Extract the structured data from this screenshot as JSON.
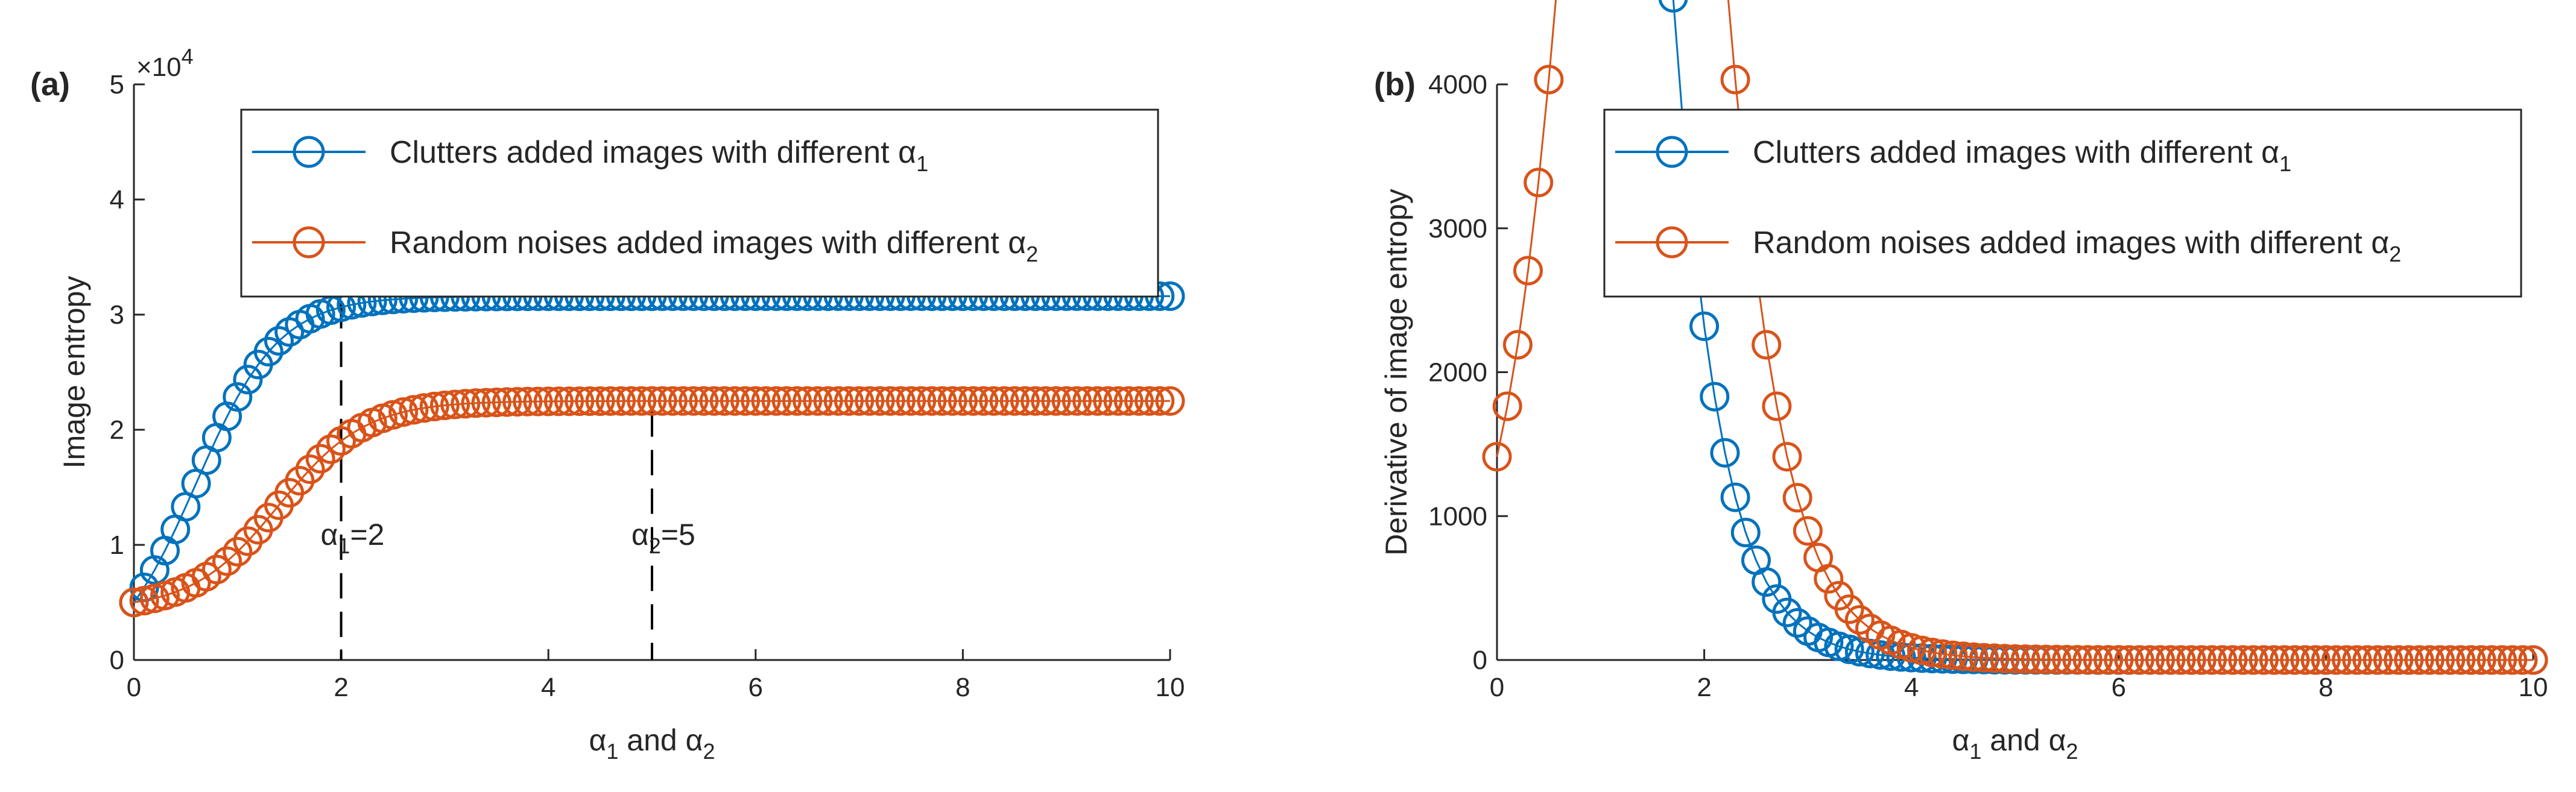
{
  "colors": {
    "series1": "#0072BD",
    "series2": "#D95319",
    "axis": "#262626",
    "annotation_line": "#000000"
  },
  "chart_data": [
    {
      "type": "line",
      "panel_label": "(a)",
      "title": "",
      "xlabel": {
        "main": "α",
        "sub1": "1",
        "mid": " and α",
        "sub2": "2"
      },
      "ylabel": "Image entropy",
      "exponent_label": {
        "base": "×10",
        "power": "4"
      },
      "xlim": [
        0,
        10
      ],
      "ylim": [
        0,
        50000
      ],
      "xticks": [
        0,
        2,
        4,
        6,
        8,
        10
      ],
      "yticks": [
        0,
        10000,
        20000,
        30000,
        40000,
        50000
      ],
      "ytick_labels": [
        "0",
        "1",
        "2",
        "3",
        "4",
        "5"
      ],
      "grid": false,
      "legend_position": "top-center",
      "series": [
        {
          "name": "Clutters added images with different α",
          "name_sub": "1",
          "marker": "circle",
          "model": "logistic",
          "params": {
            "start": 5000,
            "end": 31600,
            "k": 1.25,
            "x0": 0.6
          }
        },
        {
          "name": "Random noises added images with different α",
          "name_sub": "2",
          "marker": "circle",
          "model": "logistic",
          "params": {
            "start": 5000,
            "end": 22500,
            "k": 1.2,
            "x0": 1.4
          }
        }
      ],
      "x_step": 0.1,
      "annotations": [
        {
          "type": "vline",
          "x": 2,
          "y_top": 31000,
          "style": "dashed"
        },
        {
          "type": "vline",
          "x": 5,
          "y_top": 21600,
          "style": "dashed"
        },
        {
          "type": "text",
          "main": "α",
          "sub": "1",
          "rest": "=2",
          "x": 2.5,
          "y": 10000
        },
        {
          "type": "text",
          "main": "α",
          "sub": "2",
          "rest": "=5",
          "x": 5.5,
          "y": 10000
        }
      ]
    },
    {
      "type": "line",
      "panel_label": "(b)",
      "title": "",
      "xlabel": {
        "main": "α",
        "sub1": "1",
        "mid": " and α",
        "sub2": "2"
      },
      "ylabel": "Derivative of image entropy",
      "xlim": [
        0,
        10
      ],
      "ylim": [
        0,
        4000
      ],
      "xticks": [
        0,
        2,
        4,
        6,
        8,
        10
      ],
      "yticks": [
        0,
        1000,
        2000,
        3000,
        4000
      ],
      "ytick_labels": [
        "0",
        "1000",
        "2000",
        "3000",
        "4000"
      ],
      "grid": false,
      "legend_position": "top-right",
      "series": [
        {
          "name": "Clutters added images with different α",
          "name_sub": "1",
          "marker": "circle",
          "model": "derivative",
          "params": {
            "start": 5000,
            "end": 31600,
            "k": 1.25,
            "x0": 0.6
          }
        },
        {
          "name": "Random noises added images with different α",
          "name_sub": "2",
          "marker": "circle",
          "model": "derivative",
          "params": {
            "start": 5000,
            "end": 22500,
            "k": 1.2,
            "x0": 1.4
          }
        }
      ],
      "x_step": 0.1,
      "annotations": []
    }
  ]
}
